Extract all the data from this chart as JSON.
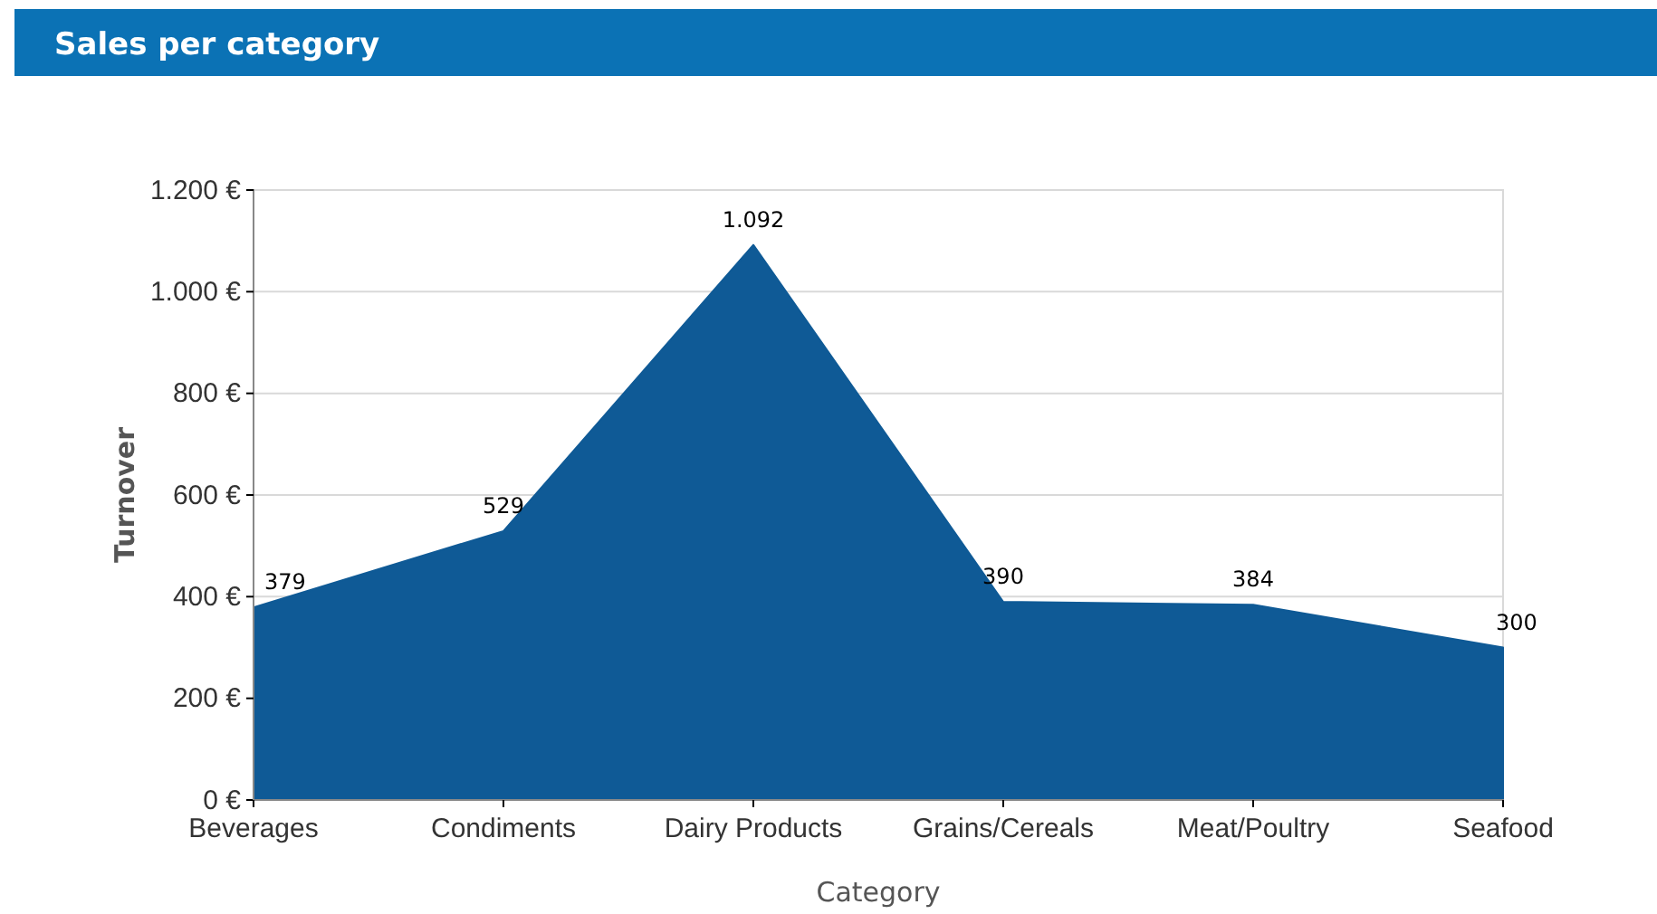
{
  "chart_data": {
    "type": "area",
    "title": "Sales per category",
    "xlabel": "Category",
    "ylabel": "Turnover",
    "categories": [
      "Beverages",
      "Condiments",
      "Dairy Products",
      "Grains/Cereals",
      "Meat/Poultry",
      "Seafood"
    ],
    "series": [
      {
        "color": "#0f5a96",
        "values": [
          379,
          529,
          1092,
          390,
          384,
          300
        ],
        "value_labels": [
          "379",
          "529",
          "1.092",
          "390",
          "384",
          "300"
        ]
      }
    ],
    "ylim": [
      0,
      1200
    ],
    "yticks": [
      {
        "value": 0,
        "label": "0 €"
      },
      {
        "value": 200,
        "label": "200 €"
      },
      {
        "value": 400,
        "label": "400 €"
      },
      {
        "value": 600,
        "label": "600 €"
      },
      {
        "value": 800,
        "label": "800 €"
      },
      {
        "value": 1000,
        "label": "1.000 €"
      },
      {
        "value": 1200,
        "label": "1.200 €"
      }
    ],
    "grid": "y"
  }
}
